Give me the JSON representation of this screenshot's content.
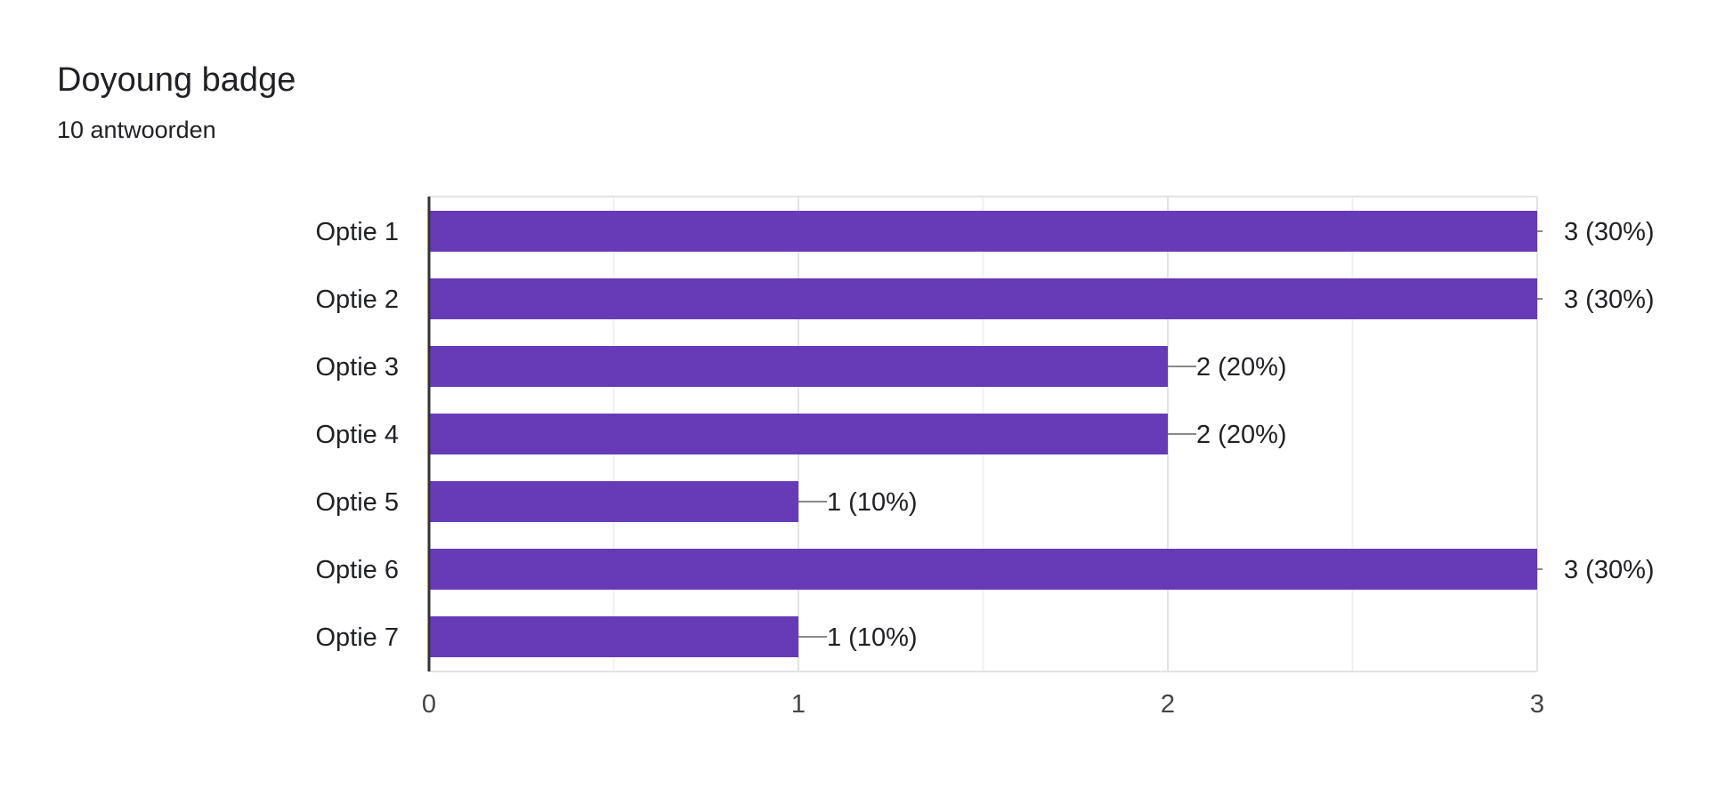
{
  "chart_data": {
    "type": "bar",
    "orientation": "horizontal",
    "title": "Doyoung badge",
    "subtitle": "10 antwoorden",
    "categories": [
      "Optie 1",
      "Optie 2",
      "Optie 3",
      "Optie 4",
      "Optie 5",
      "Optie 6",
      "Optie 7"
    ],
    "values": [
      3,
      3,
      2,
      2,
      1,
      3,
      1
    ],
    "data_labels": [
      "3 (30%)",
      "3 (30%)",
      "2 (20%)",
      "2 (20%)",
      "1 (10%)",
      "3 (30%)",
      "1 (10%)"
    ],
    "x_ticks": [
      "0",
      "1",
      "2",
      "3"
    ],
    "xlim": [
      0,
      3
    ],
    "grid": true,
    "bar_color": "#673ab7"
  }
}
